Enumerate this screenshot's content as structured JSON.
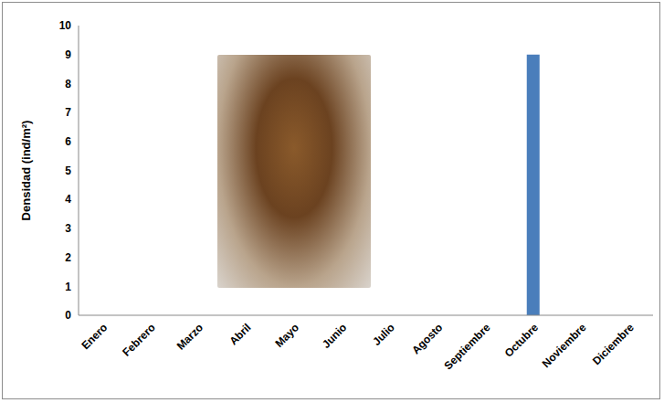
{
  "chart_data": {
    "type": "bar",
    "y_label": "Densidad (ind/m²)",
    "categories": [
      "Enero",
      "Febrero",
      "Marzo",
      "Abril",
      "Mayo",
      "Junio",
      "Julio",
      "Agosto",
      "Septiembre",
      "Octubre",
      "Noviembre",
      "Diciembre"
    ],
    "values": [
      0,
      0,
      0,
      0,
      0,
      0,
      0,
      0,
      0,
      9,
      0,
      0
    ],
    "color": "#4a7ebb",
    "ylim": [
      0,
      10
    ],
    "yticks": [
      0,
      1,
      2,
      3,
      4,
      5,
      6,
      7,
      8,
      9,
      10
    ],
    "grid": false
  }
}
